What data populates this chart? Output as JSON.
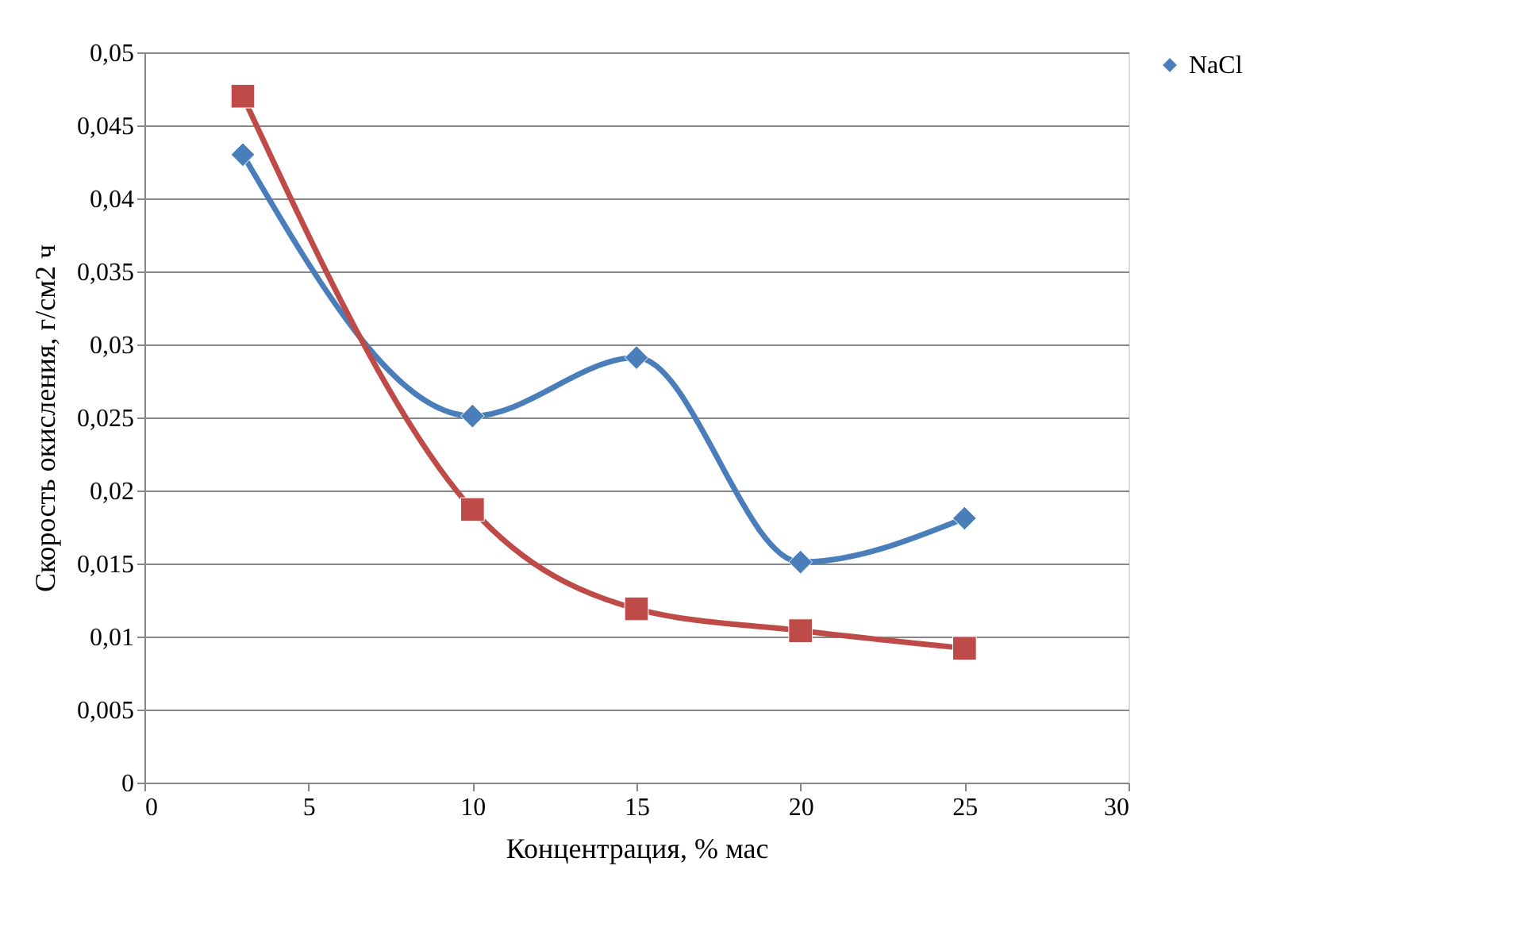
{
  "chart_data": {
    "type": "line",
    "xlabel": "Концентрация,  % мас",
    "ylabel": "Скорость окисления, г/см2 ч",
    "x": [
      3,
      10,
      15,
      20,
      25
    ],
    "series": [
      {
        "name": "NaCl",
        "color": "#4a7ebb",
        "marker": "diamond",
        "values": [
          0.043,
          0.0251,
          0.0291,
          0.0151,
          0.0181
        ]
      },
      {
        "color": "#be4b48",
        "marker": "square",
        "values": [
          0.047,
          0.0187,
          0.0119,
          0.0104,
          0.0092
        ]
      }
    ],
    "xlim": [
      0,
      30
    ],
    "xticks": [
      0,
      5,
      10,
      15,
      20,
      25,
      30
    ],
    "ylim": [
      0,
      0.05
    ],
    "yticks": [
      {
        "value": 0,
        "label": "0"
      },
      {
        "value": 0.005,
        "label": "0,005"
      },
      {
        "value": 0.01,
        "label": "0,01"
      },
      {
        "value": 0.015,
        "label": "0,015"
      },
      {
        "value": 0.02,
        "label": "0,02"
      },
      {
        "value": 0.025,
        "label": "0,025"
      },
      {
        "value": 0.03,
        "label": "0,03"
      },
      {
        "value": 0.035,
        "label": "0,035"
      },
      {
        "value": 0.04,
        "label": "0,04"
      },
      {
        "value": 0.045,
        "label": "0,045"
      },
      {
        "value": 0.05,
        "label": "0,05"
      }
    ],
    "grid": "y",
    "legend": "right",
    "line_style": "solid"
  }
}
